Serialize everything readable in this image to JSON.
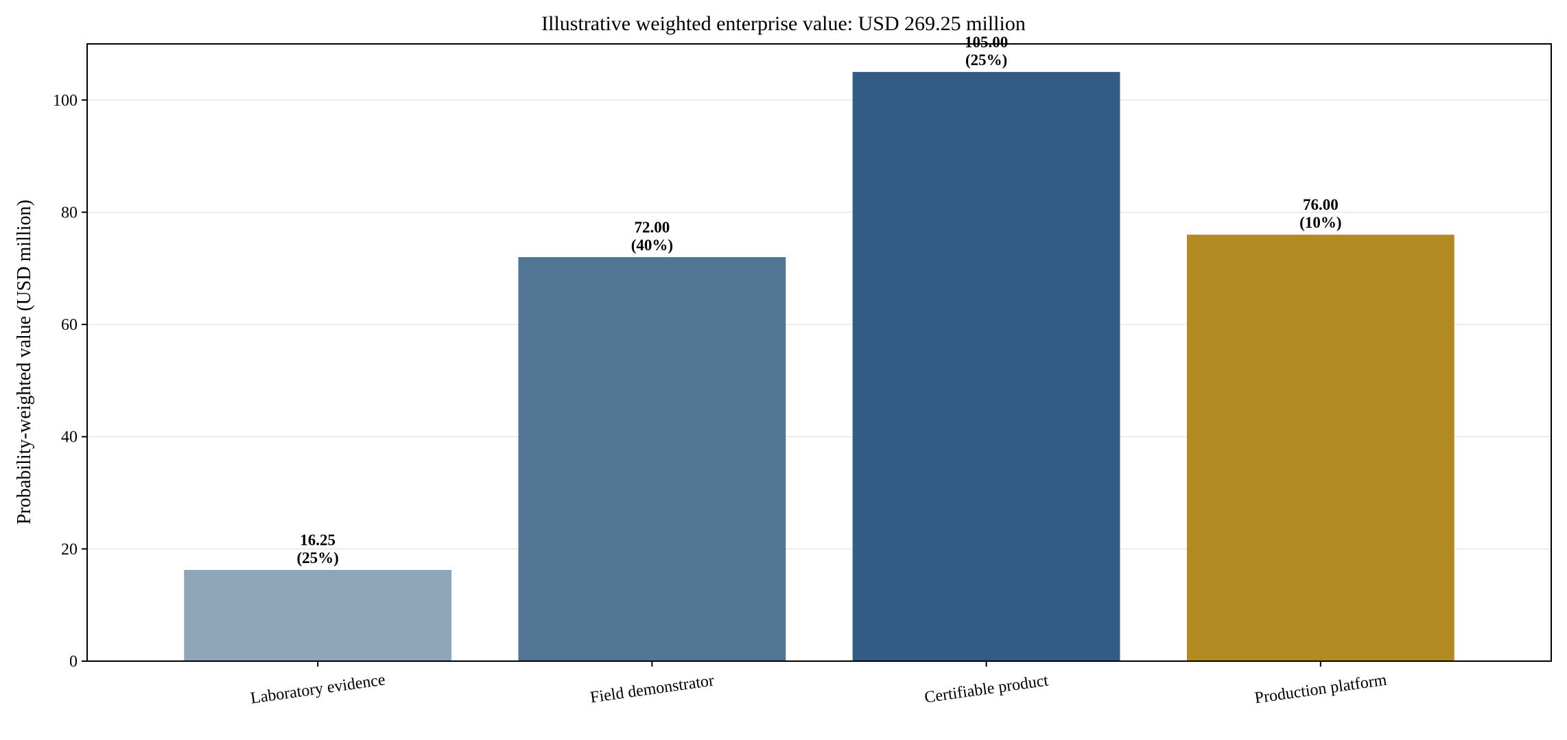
{
  "chart_data": {
    "type": "bar",
    "title": "Illustrative weighted enterprise value: USD 269.25 million",
    "xlabel": "",
    "ylabel": "Probability-weighted value (USD million)",
    "categories": [
      "Laboratory evidence",
      "Field demonstrator",
      "Certifiable product",
      "Production platform"
    ],
    "values": [
      16.25,
      72.0,
      105.0,
      76.0
    ],
    "value_labels": [
      "16.25",
      "72.00",
      "105.00",
      "76.00"
    ],
    "probability_labels": [
      "(25%)",
      "(40%)",
      "(25%)",
      "(10%)"
    ],
    "colors": [
      "#8fa5ba",
      "#527594",
      "#325c86",
      "#b38a22"
    ],
    "ylim": [
      0,
      110
    ],
    "yticks": [
      0,
      20,
      40,
      60,
      80,
      100
    ],
    "ytick_labels": [
      "0",
      "20",
      "40",
      "60",
      "80",
      "100"
    ],
    "grid": "y-major",
    "legend": "none"
  }
}
